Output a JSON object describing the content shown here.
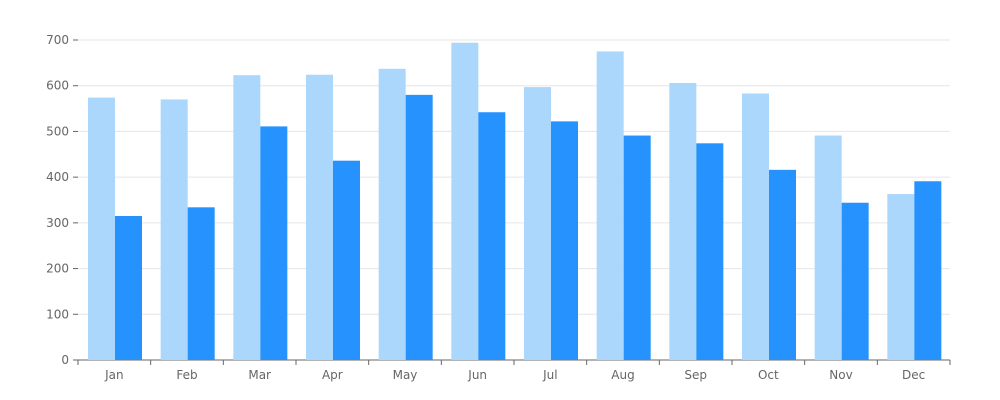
{
  "chart_data": {
    "type": "bar",
    "title": "",
    "xlabel": "",
    "ylabel": "",
    "categories": [
      "Jan",
      "Feb",
      "Mar",
      "Apr",
      "May",
      "Jun",
      "Jul",
      "Aug",
      "Sep",
      "Oct",
      "Nov",
      "Dec"
    ],
    "series": [
      {
        "color": "#abd7fd",
        "values": [
          574,
          570,
          623,
          624,
          637,
          694,
          597,
          675,
          606,
          583,
          491,
          363
        ]
      },
      {
        "color": "#2692fd",
        "values": [
          315,
          334,
          511,
          436,
          580,
          542,
          522,
          491,
          474,
          416,
          344,
          391
        ]
      }
    ],
    "ylim": [
      0,
      700
    ],
    "yticks": [
      0,
      100,
      200,
      300,
      400,
      500,
      600,
      700
    ],
    "grid": true,
    "legend": "none",
    "axis_color": "#666666",
    "grid_color": "#e6e6e6"
  }
}
